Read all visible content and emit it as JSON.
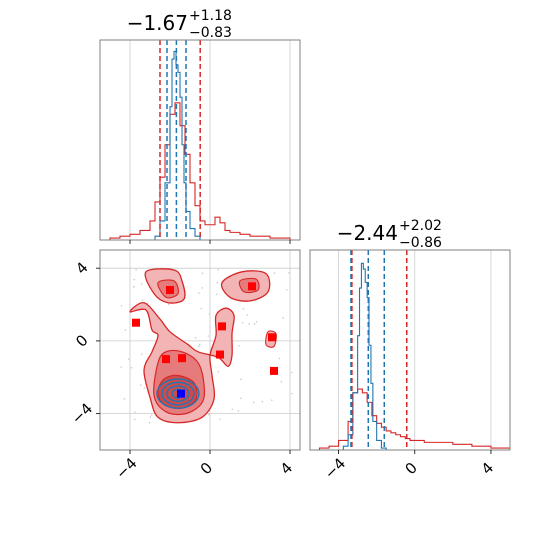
{
  "chart_data": {
    "type": "corner",
    "parameters": [
      "",
      ""
    ],
    "colors": {
      "red": "#d62728",
      "red_fill_light": "#f2b4b4",
      "red_fill_mid": "#e57b7b",
      "red_fill_dark": "#cf4a4a",
      "blue": "#1f77b4",
      "grid": "#cccccc",
      "frame": "#808080",
      "marker_blue": "#0000ff",
      "marker_red": "#ff0000"
    },
    "grid": true,
    "panels": [
      {
        "id": "marginal_1",
        "type": "histogram",
        "title_value": "−1.67",
        "title_sup": "+1.18",
        "title_sub": "−0.83",
        "xlim": [
          -5.5,
          4.5
        ],
        "xticks": [
          -4,
          0,
          4
        ],
        "show_xticklabels": false,
        "series": [
          {
            "name": "",
            "color": "#d62728",
            "bins": [
              -5.5,
              -5.0,
              -4.5,
              -4.0,
              -3.5,
              -3.0,
              -2.75,
              -2.5,
              -2.25,
              -2.0,
              -1.75,
              -1.5,
              -1.25,
              -1.0,
              -0.75,
              -0.5,
              -0.25,
              0.0,
              0.25,
              0.5,
              0.75,
              1.0,
              1.5,
              2.0,
              2.5,
              3.0,
              3.5,
              4.0,
              4.5
            ],
            "counts": [
              0.0,
              0.01,
              0.02,
              0.03,
              0.05,
              0.1,
              0.2,
              0.33,
              0.5,
              0.66,
              0.72,
              0.6,
              0.45,
              0.3,
              0.18,
              0.1,
              0.08,
              0.08,
              0.12,
              0.09,
              0.05,
              0.04,
              0.03,
              0.02,
              0.02,
              0.01,
              0.01,
              0.0
            ]
          },
          {
            "name": "",
            "color": "#1f77b4",
            "bins": [
              -3.0,
              -2.75,
              -2.5,
              -2.25,
              -2.0,
              -1.9,
              -1.8,
              -1.7,
              -1.6,
              -1.5,
              -1.4,
              -1.3,
              -1.2,
              -1.0,
              -0.75,
              -0.5,
              -0.25
            ],
            "counts": [
              0.0,
              0.02,
              0.1,
              0.3,
              0.7,
              0.95,
              0.99,
              0.92,
              0.88,
              0.75,
              0.5,
              0.3,
              0.15,
              0.06,
              0.02,
              0.0
            ]
          }
        ],
        "vlines": [
          {
            "x": -2.5,
            "color": "#d62728"
          },
          {
            "x": -0.49,
            "color": "#d62728"
          },
          {
            "x": -2.15,
            "color": "#1f77b4"
          },
          {
            "x": -1.68,
            "color": "#1f77b4"
          },
          {
            "x": -1.2,
            "color": "#1f77b4"
          }
        ]
      },
      {
        "id": "joint",
        "type": "contour",
        "xlim": [
          -5.5,
          4.5
        ],
        "ylim": [
          -6,
          5
        ],
        "xticks": [
          -4,
          0,
          4
        ],
        "yticks": [
          -4,
          0,
          4
        ],
        "xticklabels": [
          "−4",
          "0",
          "4"
        ],
        "yticklabels": [
          "−4",
          "0",
          "4"
        ],
        "red_markers": [
          {
            "x": -3.7,
            "y": 1.0
          },
          {
            "x": -2.0,
            "y": 2.8
          },
          {
            "x": 2.1,
            "y": 3.0
          },
          {
            "x": 0.6,
            "y": 0.8
          },
          {
            "x": -2.2,
            "y": -1.0
          },
          {
            "x": -1.4,
            "y": -0.95
          },
          {
            "x": 0.5,
            "y": -0.75
          },
          {
            "x": 3.1,
            "y": 0.2
          },
          {
            "x": 3.2,
            "y": -1.65
          }
        ],
        "blue_marker": {
          "x": -1.45,
          "y": -2.9
        },
        "blue_contour_centers": [
          {
            "x": -1.6,
            "y": -2.9
          }
        ]
      },
      {
        "id": "marginal_2",
        "type": "histogram",
        "title_value": "−2.44",
        "title_sup": "+2.02",
        "title_sub": "−0.86",
        "xlim": [
          -5.5,
          5.0
        ],
        "xticks": [
          -4,
          0,
          4
        ],
        "xticklabels": [
          "−4",
          "0",
          "4"
        ],
        "series": [
          {
            "name": "",
            "color": "#d62728",
            "bins": [
              -5.5,
              -5.0,
              -4.5,
              -4.0,
              -3.5,
              -3.25,
              -3.0,
              -2.75,
              -2.5,
              -2.25,
              -2.0,
              -1.75,
              -1.5,
              -1.25,
              -1.0,
              -0.75,
              -0.5,
              -0.25,
              0.0,
              0.5,
              1.0,
              1.5,
              2.0,
              2.5,
              3.0,
              3.5,
              4.0,
              4.5,
              5.0
            ],
            "counts": [
              0.0,
              0.01,
              0.02,
              0.05,
              0.15,
              0.3,
              0.32,
              0.3,
              0.25,
              0.18,
              0.14,
              0.12,
              0.1,
              0.09,
              0.08,
              0.07,
              0.06,
              0.05,
              0.05,
              0.04,
              0.04,
              0.04,
              0.03,
              0.03,
              0.02,
              0.02,
              0.01,
              0.01
            ]
          },
          {
            "name": "",
            "color": "#1f77b4",
            "bins": [
              -4.0,
              -3.75,
              -3.5,
              -3.25,
              -3.0,
              -2.9,
              -2.8,
              -2.7,
              -2.6,
              -2.5,
              -2.4,
              -2.3,
              -2.2,
              -2.0,
              -1.75,
              -1.5
            ],
            "counts": [
              0.0,
              0.02,
              0.08,
              0.3,
              0.6,
              0.85,
              0.98,
              0.95,
              0.88,
              0.8,
              0.55,
              0.35,
              0.15,
              0.05,
              0.01
            ]
          }
        ],
        "vlines": [
          {
            "x": -3.3,
            "color": "#d62728"
          },
          {
            "x": -0.42,
            "color": "#d62728"
          },
          {
            "x": -3.35,
            "color": "#1f77b4"
          },
          {
            "x": -2.44,
            "color": "#1f77b4"
          },
          {
            "x": -1.6,
            "color": "#1f77b4"
          }
        ]
      }
    ]
  }
}
